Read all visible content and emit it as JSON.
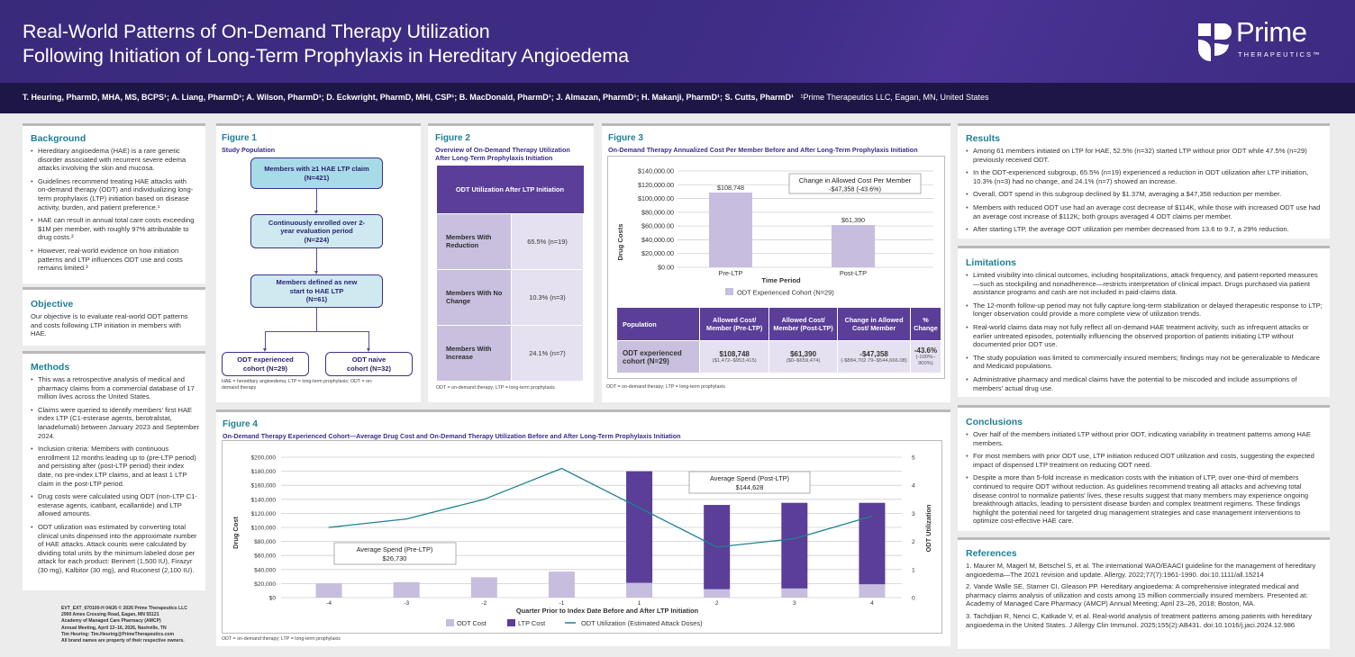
{
  "header": {
    "title_line1": "Real-World Patterns of On-Demand Therapy Utilization",
    "title_line2": "Following Initiation of Long-Term Prophylaxis in Hereditary Angioedema",
    "logo_word": "Prime",
    "logo_sub": "THERAPEUTICS™",
    "authors": "T. Heuring, PharmD, MHA, MS, BCPS¹; A. Liang, PharmD¹; A. Wilson, PharmD¹; D. Eckwright, PharmD, MHI, CSP¹; B. MacDonald, PharmD¹; J. Almazan, PharmD¹; H. Makanji, PharmD¹; S. Cutts, PharmD¹",
    "affiliation": "¹Prime Therapeutics LLC, Eagan, MN, United States"
  },
  "colors": {
    "header_purple": "#3f2d86",
    "section_teal": "#1e7f95",
    "ltp_purple": "#5a3e98",
    "odt_lavender": "#c6bddf",
    "line_teal": "#1f8290"
  },
  "background": {
    "heading": "Background",
    "bullets": [
      "Hereditary angioedema (HAE) is a rare genetic disorder associated with recurrent severe edema attacks involving the skin and mucosa.",
      "Guidelines recommend treating HAE attacks with on-demand therapy (ODT) and individualizing long-term prophylaxis (LTP) initiation based on disease activity, burden, and patient preference.¹",
      "HAE can result in annual total care costs exceeding $1M per member, with roughly 97% attributable to drug costs.²",
      "However, real-world evidence on how initiation patterns and LTP influences ODT use and costs remains limited.³"
    ]
  },
  "objective": {
    "heading": "Objective",
    "text": "Our objective is to evaluate real-world ODT patterns and costs following LTP initiation in members with HAE."
  },
  "methods": {
    "heading": "Methods",
    "bullets": [
      "This was a retrospective analysis of medical and pharmacy claims from a commercial database of 17 million lives across the United States.",
      "Claims were queried to identify members' first HAE index LTP (C1-esterase agents, berotralstat, lanadelumab) between January 2023 and September 2024.",
      "Inclusion criteria: Members with continuous enrollment 12 months leading up to (pre-LTP period) and persisting after (post-LTP period) their index date, no pre-index LTP claims, and at least 1 LTP claim in the post-LTP period.",
      "Drug costs were calculated using ODT (non-LTP C1-esterase agents, icatibant, ecallantide) and LTP allowed amounts.",
      "ODT utilization was estimated by converting total clinical units dispensed into the approximate number of HAE attacks. Attack counts were calculated by dividing total units by the minimum labeled dose per attack for each product: Berinert (1,500 IU), Firazyr (30 mg), Kalbitor (30 mg), and Ruconest (2,100 IU)."
    ]
  },
  "footer_info": [
    "EVT_EXT_670100-H 04/26  © 2026 Prime Therapeutics LLC",
    "2900 Ames Crossing Road, Eagan, MN 55121",
    "Academy of Managed Care Pharmacy (AMCP)",
    "Annual Meeting, April 13–16, 2026, Nashville, TN",
    "Tim Heuring: Tim.Heuring@PrimeTherapeutics.com",
    "All brand names are property of their respective owners."
  ],
  "figure1": {
    "label": "Figure 1",
    "title": "Study Population",
    "boxes": [
      {
        "text": "Members with ≥1 HAE LTP claim",
        "n": "(N=421)"
      },
      {
        "text": "Continuously enrolled over 2-year evaluation period",
        "n": "(N=224)"
      },
      {
        "text": "Members defined as new start to HAE LTP",
        "n": "(N=61)"
      },
      {
        "text": "ODT experienced cohort (N=29)"
      },
      {
        "text": "ODT naive cohort (N=32)"
      }
    ],
    "footnote": "HAE = hereditary angioedema; LTP = long-term prophylaxis; ODT = on-demand therapy"
  },
  "figure2": {
    "label": "Figure 2",
    "title": "Overview of On-Demand Therapy Utilization After Long-Term Prophylaxis Initiation",
    "header": "ODT Utilization After LTP Initiation",
    "rows": [
      {
        "label": "Members With Reduction",
        "value": "65.5% (n=19)"
      },
      {
        "label": "Members With No Change",
        "value": "10.3% (n=3)"
      },
      {
        "label": "Members With Increase",
        "value": "24.1% (n=7)"
      }
    ],
    "footnote": "ODT = on-demand therapy; LTP = long-term prophylaxis"
  },
  "figure3": {
    "label": "Figure 3",
    "title": "On-Demand Therapy Annualized Cost Per Member Before and After Long-Term Prophylaxis Initiation",
    "callout_title": "Change in Allowed Cost Per Member",
    "callout_value": "-$47,358 (-43.6%)",
    "bar_labels": [
      "$108,748",
      "$61,390"
    ],
    "table": {
      "headers": [
        "Population",
        "Allowed Cost/ Member (Pre-LTP)",
        "Allowed Cost/ Member (Post-LTP)",
        "Change in Allowed Cost/ Member",
        "% Change"
      ],
      "row": {
        "population": "ODT experienced cohort (N=29)",
        "pre": "$108,748",
        "pre_range": "($1,472–$953,415)",
        "post": "$61,390",
        "post_range": "($0–$659,474)",
        "change": "-$47,358",
        "change_range": "(-$884,702.79–$544,666.08)",
        "pct": "-43.6%",
        "pct_range": "(-100%–900%)"
      }
    },
    "footnote": "ODT = on-demand therapy; LTP = long-term prophylaxis"
  },
  "figure4": {
    "label": "Figure 4",
    "title": "On-Demand Therapy Experienced Cohort—Average Drug Cost and On-Demand Therapy Utilization Before and After Long-Term Prophylaxis Initiation",
    "callout_pre_title": "Average Spend (Pre-LTP)",
    "callout_pre_value": "$26,730",
    "callout_post_title": "Average Spend (Post-LTP)",
    "callout_post_value": "$144,628",
    "footnote": "ODT = on-demand therapy; LTP = long-term prophylaxis"
  },
  "chart_data": [
    {
      "id": "figure3",
      "type": "bar",
      "title": "On-Demand Therapy Annualized Cost Per Member Before and After Long-Term Prophylaxis Initiation",
      "categories": [
        "Pre-LTP",
        "Post-LTP"
      ],
      "series": [
        {
          "name": "ODT Experienced Cohort (N=29)",
          "values": [
            108748,
            61390
          ]
        }
      ],
      "data_labels": [
        "$108,748",
        "$61,390"
      ],
      "xlabel": "Time Period",
      "ylabel": "Drug Costs",
      "ylim": [
        0,
        140000
      ],
      "yticks": [
        "$0.00",
        "$20,000.00",
        "$40,000.00",
        "$60,000.00",
        "$80,000.00",
        "$100,000.00",
        "$120,000.00",
        "$140,000.00"
      ],
      "annotation": "Change in Allowed Cost Per Member -$47,358 (-43.6%)",
      "legend": "bottom",
      "grid": true
    },
    {
      "id": "figure4",
      "type": "bar",
      "subtype": "stacked bar + line (dual axis)",
      "title": "On-Demand Therapy Experienced Cohort—Average Drug Cost and On-Demand Therapy Utilization Before and After Long-Term Prophylaxis Initiation",
      "categories": [
        "-4",
        "-3",
        "-2",
        "-1",
        "1",
        "2",
        "3",
        "4"
      ],
      "series": [
        {
          "name": "ODT Cost",
          "axis": "left",
          "values": [
            20000,
            22000,
            29000,
            37000,
            21000,
            12000,
            13000,
            19000
          ]
        },
        {
          "name": "LTP Cost",
          "axis": "left",
          "values": [
            0,
            0,
            0,
            0,
            159000,
            120000,
            122000,
            116000
          ]
        },
        {
          "name": "ODT  Utilization (Estimated Attack Doses)",
          "axis": "right",
          "type": "line",
          "values": [
            2.5,
            2.8,
            3.5,
            4.6,
            3.2,
            1.8,
            2.1,
            2.9
          ]
        }
      ],
      "xlabel": "Quarter Prior to Index Date Before and After LTP Initiation",
      "ylabel": "Drug Cost",
      "y2label": "ODT Utilization",
      "ylim": [
        0,
        200000
      ],
      "y2lim": [
        0,
        5
      ],
      "yticks": [
        "$0",
        "$20,000",
        "$40,000",
        "$60,000",
        "$80,000",
        "$100,000",
        "$120,000",
        "$140,000",
        "$160,000",
        "$180,000",
        "$200,000"
      ],
      "y2ticks": [
        "0",
        "1",
        "2",
        "3",
        "4",
        "5"
      ],
      "annotations": [
        "Average Spend (Pre-LTP) $26,730",
        "Average Spend (Post-LTP) $144,628"
      ],
      "legend": "bottom",
      "grid": true
    }
  ],
  "results": {
    "heading": "Results",
    "bullets": [
      "Among 61 members initiated on LTP for HAE, 52.5% (n=32) started LTP without prior ODT while 47.5% (n=29) previously received ODT.",
      "In the ODT-experienced subgroup, 65.5% (n=19) experienced a reduction in ODT utilization after LTP initiation, 10.3% (n=3) had no change, and 24.1% (n=7) showed an increase.",
      "Overall, ODT spend in this subgroup declined by $1.37M, averaging a $47,358 reduction per member.",
      "Members with reduced ODT use had an average cost decrease of $114K, while those with increased ODT use had an average cost increase of $112K; both groups averaged 4 ODT claims per member.",
      "After starting LTP, the average ODT utilization per member decreased from 13.6 to 9.7, a 29% reduction."
    ]
  },
  "limitations": {
    "heading": "Limitations",
    "bullets": [
      "Limited visibility into clinical outcomes, including hospitalizations, attack frequency, and patient-reported measures—such as stockpiling and nonadherence—restricts interpretation of clinical impact. Drugs purchased via patient assistance programs and cash are not included in paid-claims data.",
      "The 12-month follow-up period may not fully capture long-term stabilization or delayed therapeutic response to LTP; longer observation could provide a more complete view of utilization trends.",
      "Real-world claims data may not fully reflect all on-demand HAE treatment activity, such as infrequent attacks or earlier untreated episodes, potentially influencing the observed proportion of patients initiating LTP without documented prior ODT use.",
      "The study population was limited to commercially insured members; findings may not be generalizable to Medicare and Medicaid populations.",
      "Administrative pharmacy and medical claims have the potential to be miscoded and include assumptions of members' actual drug use."
    ]
  },
  "conclusions": {
    "heading": "Conclusions",
    "bullets": [
      "Over half of the members initiated LTP without prior ODT, indicating variability in treatment patterns among HAE members.",
      "For most members with prior ODT use, LTP initiation reduced ODT utilization and costs, suggesting the expected impact of dispensed LTP treatment on reducing ODT need.",
      "Despite a more than 5-fold increase in medication costs with the initiation of LTP, over one-third of members continued to require ODT without reduction. As guidelines recommend treating all attacks and achieving total disease control to normalize patients' lives, these results suggest that many members may experience ongoing breakthrough attacks, leading to persistent disease burden and complex treatment regimens. These findings highlight the potential need for targeted drug management strategies and case management interventions to optimize cost-effective HAE care."
    ]
  },
  "references": {
    "heading": "References",
    "items": [
      "1. Maurer M, Magerl M, Betschel S, et al. The international WAO/EAACI guideline for the management of hereditary angioedema—The 2021 revision and update. Allergy. 2022;77(7):1961-1990. doi:10.1111/all.15214",
      "2. Vande Walle SE, Starner CI, Gleason PP. Hereditary angioedema: A comprehensive integrated medical and pharmacy claims analysis of utilization and costs among 15 million commercially insured members. Presented at: Academy of Managed Care Pharmacy (AMCP) Annual Meeting; April 23–26, 2018; Boston, MA.",
      "3. Tachdjian R, Nenci C, Katkade V, et al. Real-world analysis of treatment patterns among patients with hereditary angioedema in the United States. J Allergy Clin Immunol. 2025;155(2):AB431. doi:10.1016/j.jaci.2024.12.986"
    ]
  }
}
